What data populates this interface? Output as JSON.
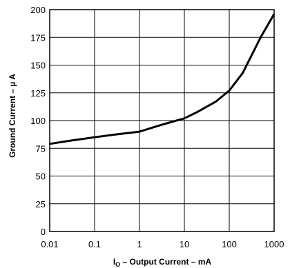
{
  "chart_data": {
    "type": "line",
    "title": "",
    "xlabel": {
      "main": "I",
      "sub": "O",
      "rest": " – Output Current – mA"
    },
    "ylabel": "Ground Current – µ A",
    "x_scale": "log",
    "xlim": [
      0.01,
      1000
    ],
    "ylim": [
      0,
      200
    ],
    "grid": true,
    "x_ticks": [
      0.01,
      0.1,
      1,
      10,
      100,
      1000
    ],
    "x_tick_labels": [
      "0.01",
      "0.1",
      "1",
      "10",
      "100",
      "1000"
    ],
    "y_ticks": [
      0,
      25,
      50,
      75,
      100,
      125,
      150,
      175,
      200
    ],
    "y_tick_labels": [
      "0",
      "25",
      "50",
      "75",
      "100",
      "125",
      "150",
      "175",
      "200"
    ],
    "series": [
      {
        "x": [
          0.01,
          0.03,
          0.1,
          0.3,
          1,
          3,
          10,
          20,
          50,
          100,
          200,
          500,
          1000
        ],
        "y": [
          79,
          82,
          85,
          87.5,
          90,
          96,
          102,
          108,
          117,
          127,
          143,
          175,
          196
        ]
      }
    ]
  }
}
